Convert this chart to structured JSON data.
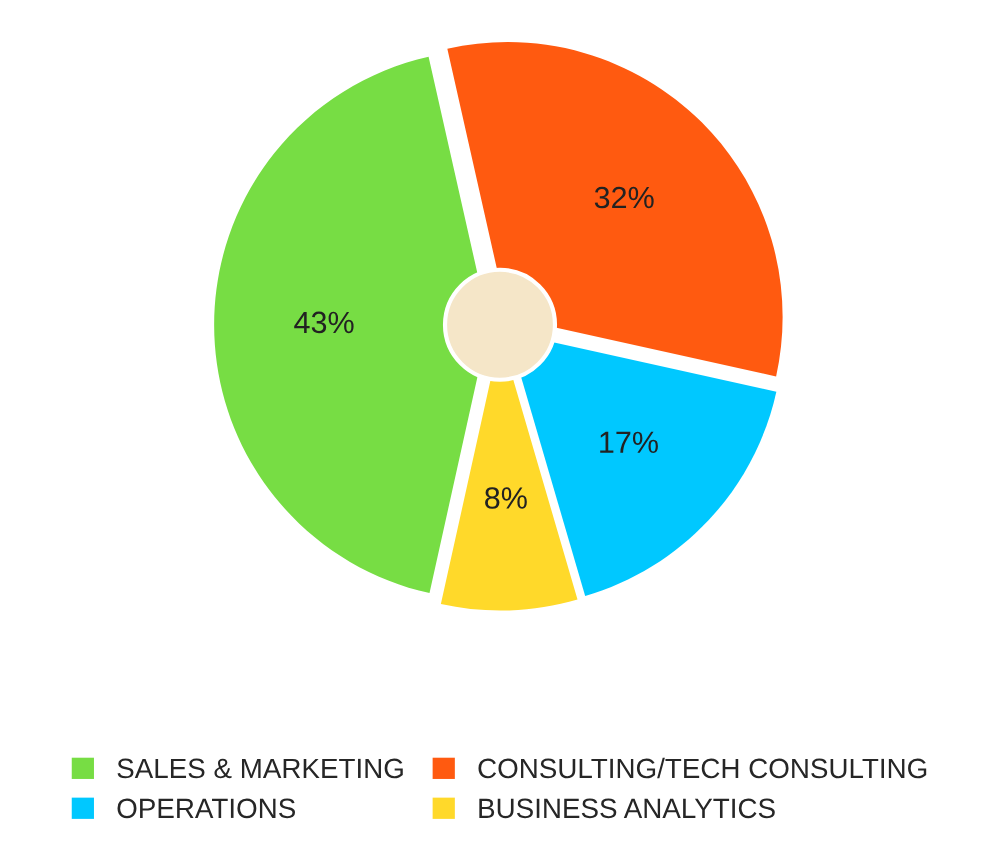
{
  "chart_data": {
    "type": "pie",
    "categories": [
      "SALES & MARKETING",
      "CONSULTING/TECH CONSULTING",
      "OPERATIONS",
      "BUSINESS ANALYTICS"
    ],
    "values": [
      43,
      32,
      17,
      8
    ],
    "value_labels": [
      "43%",
      "32%",
      "17%",
      "8%"
    ],
    "colors": [
      "#77dd44",
      "#ff5a10",
      "#00c8ff",
      "#ffd92a"
    ],
    "legend": "bottom"
  }
}
